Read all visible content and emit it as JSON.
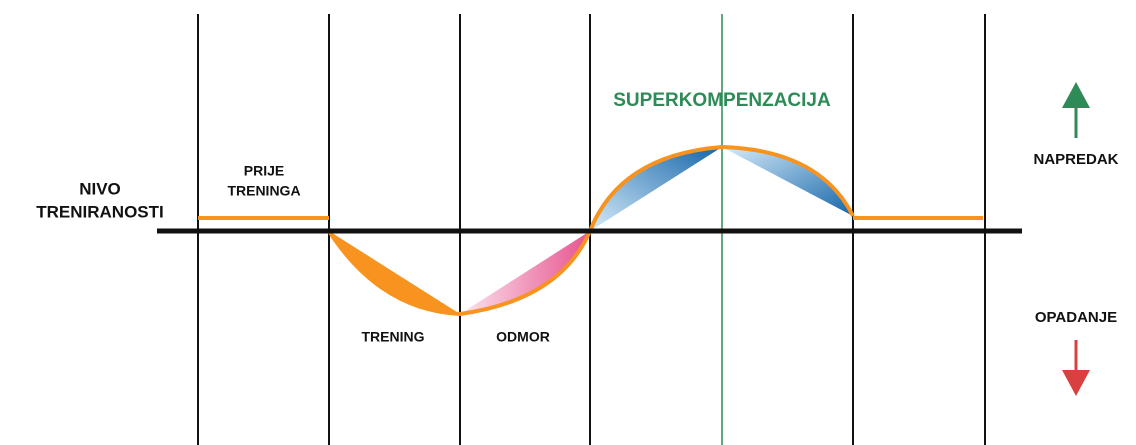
{
  "labels": {
    "level": [
      "NIVO",
      "TRENIRANOSTI"
    ],
    "before": [
      "PRIJE",
      "TRENINGA"
    ],
    "training": "TRENING",
    "rest": "ODMOR",
    "supercompensation": "SUPERKOMPENZACIJA",
    "progress": "NAPREDAK",
    "decline": "OPADANJE"
  }
}
